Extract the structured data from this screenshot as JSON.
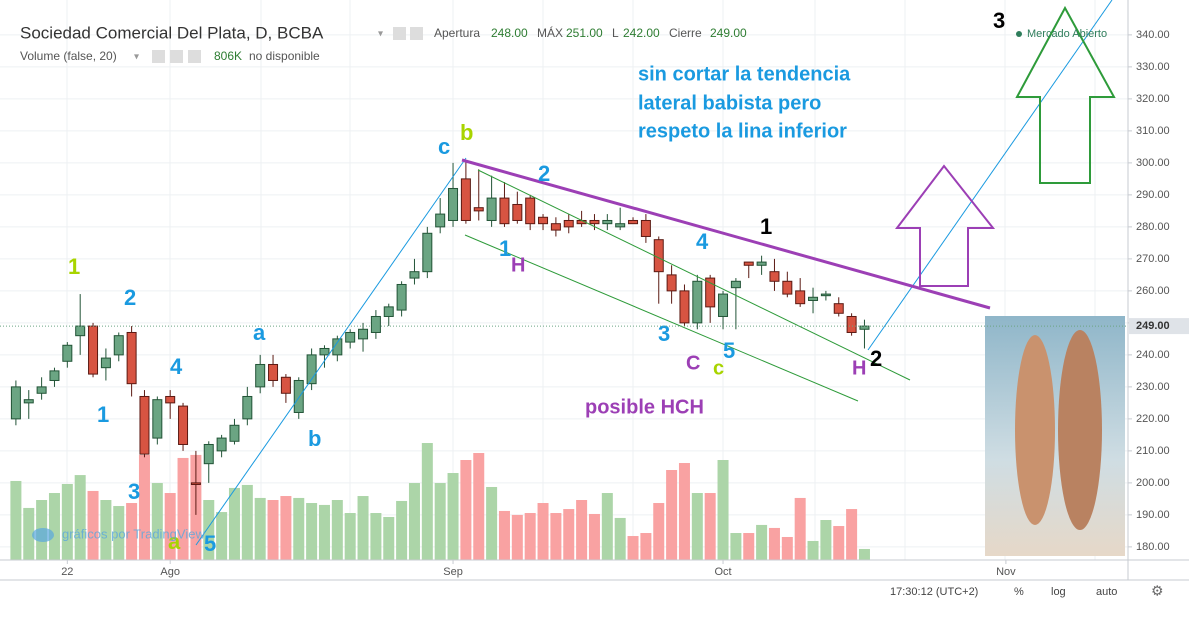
{
  "header": {
    "symbol": "Sociedad Comercial Del Plata, D, BCBA",
    "open_label": "Apertura",
    "open": "248.00",
    "high_label": "MÁX",
    "high": "251.00",
    "low_label": "L",
    "low": "242.00",
    "close_label": "Cierre",
    "close": "249.00",
    "volume_study": "Volume (false, 20)",
    "volume_value": "806K",
    "volume_note": "no disponible",
    "status": "Mercado Abierto"
  },
  "watermark": "gráficos por TradingView",
  "footer": {
    "time": "17:30:12 (UTC+2)",
    "percent": "%",
    "log": "log",
    "auto": "auto"
  },
  "chart_data": {
    "type": "candlestick",
    "categories": [
      null,
      null,
      null,
      null,
      "22",
      null,
      null,
      null,
      null,
      null,
      null,
      null,
      "Ago",
      null,
      null,
      null,
      null,
      null,
      null,
      null,
      null,
      null,
      null,
      null,
      null,
      null,
      null,
      null,
      null,
      null,
      null,
      null,
      null,
      null,
      "Sep",
      null,
      null,
      null,
      null,
      null,
      null,
      null,
      null,
      null,
      null,
      null,
      null,
      null,
      null,
      null,
      null,
      null,
      null,
      null,
      null,
      "Oct",
      null,
      null,
      null,
      null,
      null,
      null,
      null,
      null,
      null,
      null,
      null,
      null,
      null,
      null,
      null,
      null,
      null,
      null,
      null,
      null,
      null,
      "Nov"
    ],
    "open": [
      220,
      225,
      228,
      232,
      238,
      246,
      249,
      236,
      240,
      247,
      227,
      214,
      227,
      224,
      200,
      206,
      210,
      213,
      220,
      230,
      237,
      233,
      222,
      231,
      240,
      240,
      244,
      245,
      247,
      252,
      254,
      264,
      266,
      280,
      282,
      295,
      286,
      282,
      289,
      287,
      289,
      283,
      281,
      282,
      282,
      282,
      281,
      280,
      282,
      282,
      276,
      265,
      260,
      250,
      264,
      252,
      261,
      269,
      268,
      266,
      263,
      260,
      257,
      258.5,
      256,
      252,
      248,
      null,
      null,
      null,
      null,
      null,
      null,
      null,
      null,
      null,
      null,
      null
    ],
    "high": [
      232,
      229,
      233,
      236,
      244,
      259,
      250,
      242,
      247,
      249,
      229,
      227,
      229,
      225,
      210,
      213,
      215,
      220,
      230,
      240,
      240,
      234,
      233,
      242,
      243,
      246,
      248,
      250,
      254,
      256,
      263,
      270,
      280,
      289,
      300,
      301,
      298,
      296,
      294,
      291,
      290,
      284,
      283,
      284,
      285,
      284,
      284,
      286,
      283,
      284,
      277,
      268,
      262,
      265,
      265,
      260,
      264,
      269,
      271,
      270,
      266,
      264,
      261,
      260,
      258,
      253,
      251,
      null,
      null,
      null,
      null,
      null,
      null,
      null,
      null,
      null,
      null,
      null
    ],
    "low": [
      218,
      220,
      226,
      230,
      236,
      240,
      233,
      232,
      238,
      227,
      208,
      212,
      220,
      210,
      190,
      200,
      208,
      212,
      218,
      228,
      230,
      225,
      220,
      229,
      236,
      238,
      242,
      241,
      245,
      249,
      252,
      262,
      264,
      278,
      280,
      281,
      282,
      280,
      280,
      281,
      279,
      279,
      277,
      278,
      280,
      279,
      279,
      279,
      281,
      275,
      256,
      256,
      249,
      248,
      250,
      248,
      248,
      264,
      265,
      260,
      258,
      255,
      253,
      257,
      252,
      246,
      242,
      null,
      null,
      null,
      null,
      null,
      null,
      null,
      null,
      null,
      null,
      null
    ],
    "close": [
      230,
      226,
      230,
      235,
      243,
      249,
      234,
      239,
      246,
      231,
      209,
      226,
      225,
      212,
      199.5,
      212,
      214,
      218,
      227,
      237,
      232,
      228,
      232,
      240,
      242,
      245,
      247,
      248,
      252,
      255,
      262,
      266,
      278,
      284,
      292,
      282,
      285,
      289,
      281,
      282,
      281,
      281,
      279,
      280,
      281,
      281,
      282,
      281,
      281,
      277,
      266,
      260,
      250,
      263,
      255,
      259,
      263,
      268,
      269,
      263,
      259,
      256,
      258,
      259,
      253,
      247,
      249,
      null,
      null,
      null,
      null,
      null,
      null,
      null,
      null,
      null,
      null,
      null
    ],
    "volume": [
      5770,
      3800,
      4380,
      4890,
      5550,
      6200,
      5040,
      4380,
      3940,
      4160,
      7670,
      5620,
      4890,
      7450,
      7670,
      4380,
      3500,
      5260,
      5480,
      4530,
      4380,
      4670,
      4530,
      4160,
      4020,
      4380,
      3430,
      4670,
      3430,
      3140,
      4310,
      5620,
      8540,
      5620,
      6350,
      7300,
      7810,
      5330,
      3580,
      3290,
      3430,
      4160,
      3430,
      3720,
      4380,
      3360,
      4890,
      3070,
      1750,
      1970,
      4160,
      6570,
      7080,
      4890,
      4890,
      7300,
      1970,
      1970,
      2560,
      2340,
      1680,
      4530,
      1390,
      2920,
      2480,
      3720,
      806,
      null,
      null,
      null,
      null,
      null,
      null,
      null,
      null,
      null,
      null,
      null
    ],
    "up_color": "#6ba583",
    "down_color": "#d75442",
    "volume_up_color": "#acd5a8",
    "volume_down_color": "#f9a2a2",
    "ylim": [
      175.9,
      350.9
    ],
    "yticks": [
      {
        "value": 180,
        "label": "180.00"
      },
      {
        "value": 190,
        "label": "190.00"
      },
      {
        "value": 200,
        "label": "200.00"
      },
      {
        "value": 210,
        "label": "210.00"
      },
      {
        "value": 220,
        "label": "220.00"
      },
      {
        "value": 230,
        "label": "230.00"
      },
      {
        "value": 240,
        "label": "240.00"
      },
      {
        "value": 250,
        "label": "250.00"
      },
      {
        "value": 260,
        "label": "260.00"
      },
      {
        "value": 270,
        "label": "270.00"
      },
      {
        "value": 280,
        "label": "280.00"
      },
      {
        "value": 290,
        "label": "290.00"
      },
      {
        "value": 300,
        "label": "300.00"
      },
      {
        "value": 310,
        "label": "310.00"
      },
      {
        "value": 320,
        "label": "320.00"
      },
      {
        "value": 330,
        "label": "330.00"
      },
      {
        "value": 340,
        "label": "340.00"
      }
    ],
    "grid": true,
    "last_price": {
      "value": 249,
      "label": "249.00"
    },
    "annotations": [
      {
        "text": "3",
        "color": "#000000"
      },
      {
        "text": "sin cortar la tendencia",
        "color": "#1a9ae0"
      },
      {
        "text": "lateral babista pero",
        "color": "#1a9ae0"
      },
      {
        "text": "respeto la lina inferior",
        "color": "#1a9ae0"
      },
      {
        "text": "c",
        "color": "#1a9ae0"
      },
      {
        "text": "b",
        "color": "#a8d400"
      },
      {
        "text": "2",
        "color": "#1a9ae0"
      },
      {
        "text": "1",
        "color": "#000000"
      },
      {
        "text": "4",
        "color": "#1a9ae0"
      },
      {
        "text": "1",
        "color": "#1a9ae0"
      },
      {
        "text": "H",
        "color": "#9c3fb5"
      },
      {
        "text": "1",
        "color": "#a8d400"
      },
      {
        "text": "2",
        "color": "#1a9ae0"
      },
      {
        "text": "a",
        "color": "#1a9ae0"
      },
      {
        "text": "4",
        "color": "#1a9ae0"
      },
      {
        "text": "3",
        "color": "#1a9ae0"
      },
      {
        "text": "5",
        "color": "#1a9ae0"
      },
      {
        "text": "C",
        "color": "#9c3fb5"
      },
      {
        "text": "c",
        "color": "#a8d400"
      },
      {
        "text": "2",
        "color": "#000000"
      },
      {
        "text": "H",
        "color": "#9c3fb5"
      },
      {
        "text": "1",
        "color": "#1a9ae0"
      },
      {
        "text": "b",
        "color": "#1a9ae0"
      },
      {
        "text": "posible HCH",
        "color": "#9c3fb5"
      },
      {
        "text": "3",
        "color": "#1a9ae0"
      },
      {
        "text": "a",
        "color": "#a8d400"
      },
      {
        "text": "5",
        "color": "#1a9ae0"
      }
    ]
  }
}
